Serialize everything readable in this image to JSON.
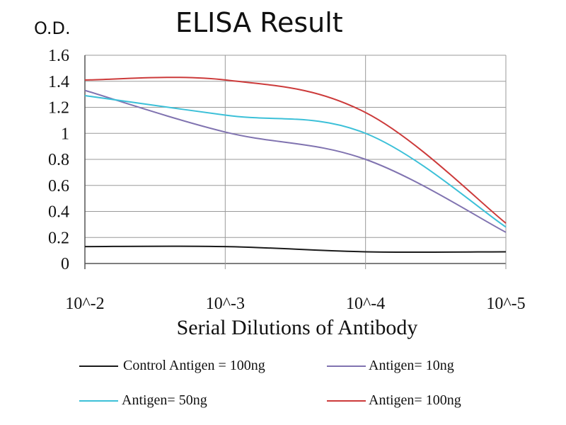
{
  "chart_data": {
    "type": "line",
    "title": "ELISA Result",
    "ylabel": "O.D.",
    "xlabel": "Serial Dilutions of Antibody",
    "categories": [
      "10^-2",
      "10^-3",
      "10^-4",
      "10^-5"
    ],
    "ylim": [
      0,
      1.6
    ],
    "yticks": [
      "0",
      "0.2",
      "0.4",
      "0.6",
      "0.8",
      "1",
      "1.2",
      "1.4",
      "1.6"
    ],
    "grid": true,
    "legend_position": "bottom",
    "series": [
      {
        "name": "Control Antigen = 100ng",
        "color": "#1a1a1a",
        "values": [
          0.13,
          0.13,
          0.09,
          0.09
        ]
      },
      {
        "name": "Antigen= 10ng",
        "color": "#8073b0",
        "values": [
          1.33,
          1.01,
          0.8,
          0.24
        ]
      },
      {
        "name": "Antigen= 50ng",
        "color": "#3cc0d8",
        "values": [
          1.29,
          1.14,
          1.0,
          0.28
        ]
      },
      {
        "name": "Antigen= 100ng",
        "color": "#cc3a3a",
        "values": [
          1.41,
          1.41,
          1.16,
          0.31
        ]
      }
    ]
  }
}
